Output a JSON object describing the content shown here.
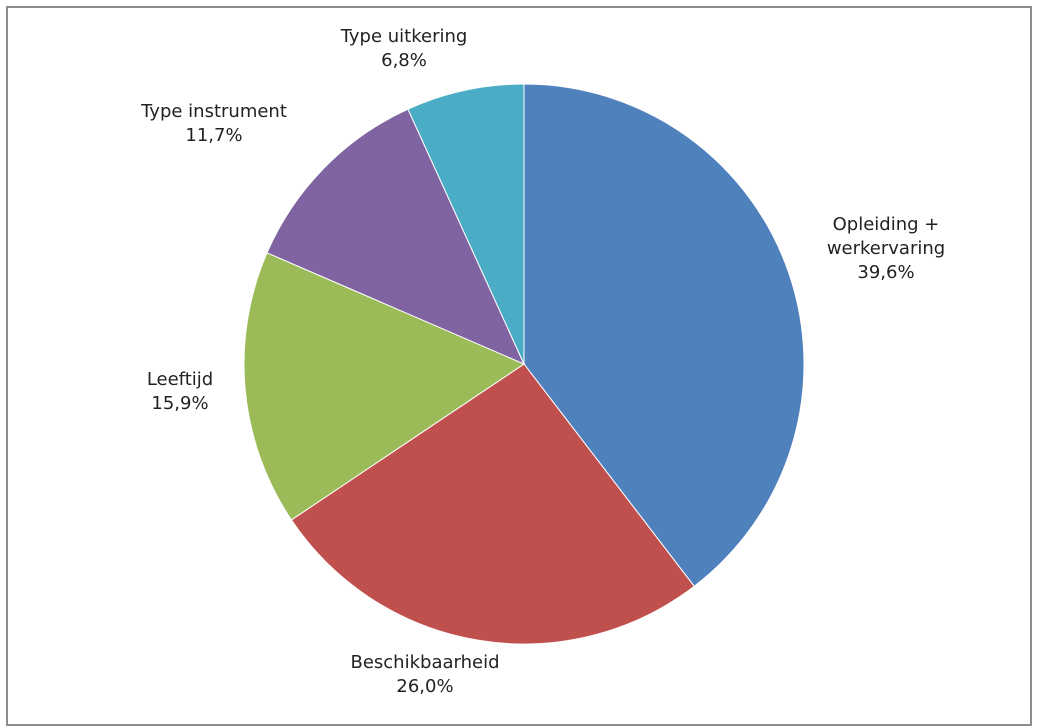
{
  "chart_data": {
    "type": "pie",
    "title": "",
    "slices": [
      {
        "label_lines": [
          "Opleiding +",
          "werkervaring"
        ],
        "value_label": "39,6%",
        "value": 39.6,
        "color": "#4f81bd"
      },
      {
        "label_lines": [
          "Beschikbaarheid"
        ],
        "value_label": "26,0%",
        "value": 26.0,
        "color": "#c0504d"
      },
      {
        "label_lines": [
          "Leeftijd"
        ],
        "value_label": "15,9%",
        "value": 15.9,
        "color": "#9bbb59"
      },
      {
        "label_lines": [
          "Type instrument"
        ],
        "value_label": "11,7%",
        "value": 11.7,
        "color": "#8064a2"
      },
      {
        "label_lines": [
          "Type uitkering"
        ],
        "value_label": "6,8%",
        "value": 6.8,
        "color": "#4bacc6"
      }
    ],
    "start": "12 o'clock",
    "direction": "clockwise"
  }
}
